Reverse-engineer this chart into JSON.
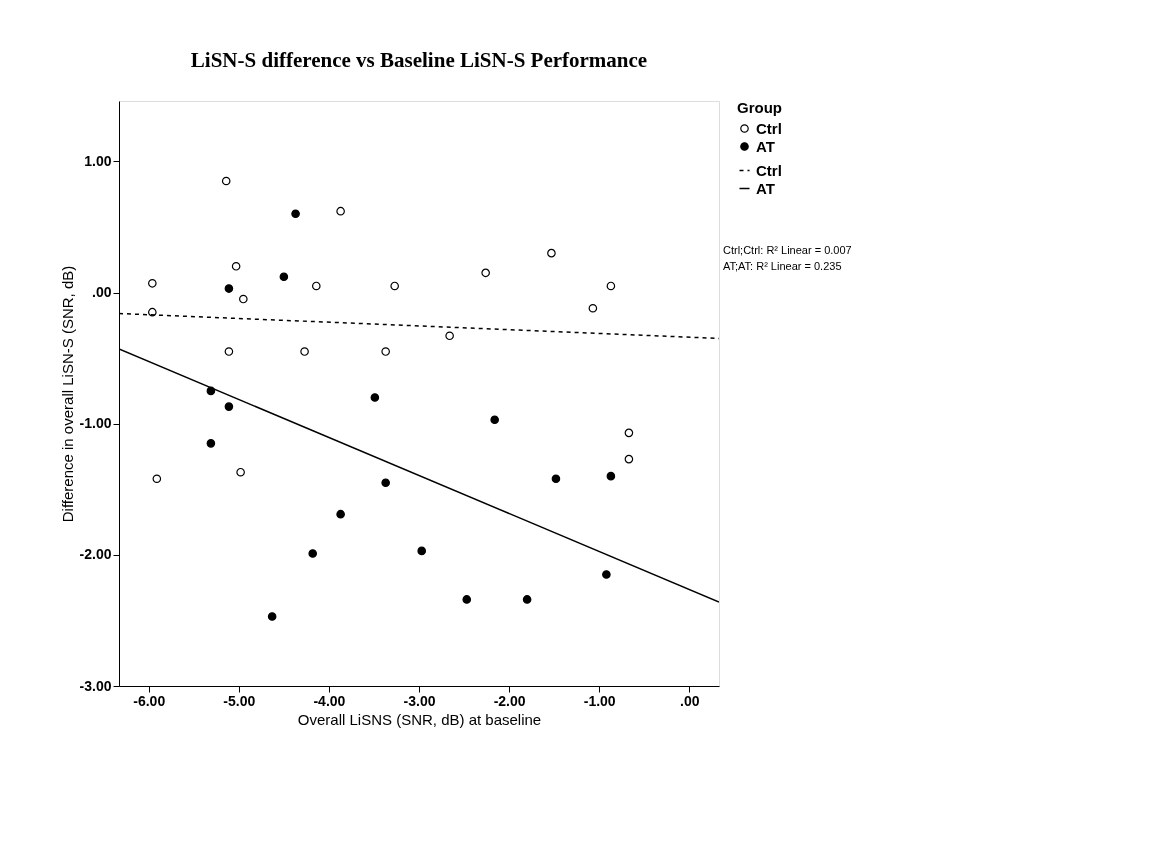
{
  "chart_data": {
    "type": "scatter",
    "title": "LiSN-S difference vs Baseline LiSN-S Performance",
    "xlabel": "Overall LiSNS (SNR, dB) at baseline",
    "ylabel": "Difference in overall LiSN-S (SNR, dB)",
    "legend_title": "Group",
    "xlim": [
      -6.33,
      0.33
    ],
    "ylim": [
      -3.0,
      1.46
    ],
    "xticks": [
      {
        "value": -6,
        "label": "-6.00"
      },
      {
        "value": -5,
        "label": "-5.00"
      },
      {
        "value": -4,
        "label": "-4.00"
      },
      {
        "value": -3,
        "label": "-3.00"
      },
      {
        "value": -2,
        "label": "-2.00"
      },
      {
        "value": -1,
        "label": "-1.00"
      },
      {
        "value": 0,
        "label": ".00"
      }
    ],
    "yticks": [
      {
        "value": -3,
        "label": "-3.00"
      },
      {
        "value": -2,
        "label": "-2.00"
      },
      {
        "value": -1,
        "label": "-1.00"
      },
      {
        "value": 0,
        "label": ".00"
      },
      {
        "value": 1,
        "label": "1.00"
      }
    ],
    "grid": false,
    "legend": "right",
    "series": [
      {
        "name": "Ctrl",
        "color": "#ffffff",
        "x": [
          -5.14,
          -3.87,
          -5.03,
          -5.96,
          -4.14,
          -3.27,
          -4.95,
          -5.96,
          -5.11,
          -4.27,
          -3.37,
          -5.91,
          -4.98,
          -2.26,
          -1.53,
          -0.87,
          -1.07,
          -2.66,
          -0.67,
          -0.67
        ],
        "values": [
          0.85,
          0.62,
          0.2,
          0.07,
          0.05,
          0.05,
          -0.05,
          -0.15,
          -0.45,
          -0.45,
          -0.45,
          -1.42,
          -1.37,
          0.15,
          0.3,
          0.05,
          -0.12,
          -0.33,
          -1.07,
          -1.27
        ]
      },
      {
        "name": "AT",
        "color": "#000000",
        "x": [
          -4.37,
          -4.5,
          -5.11,
          -5.31,
          -5.11,
          -3.49,
          -5.31,
          -3.37,
          -2.16,
          -1.48,
          -0.87,
          -3.87,
          -4.18,
          -2.97,
          -4.63,
          -2.47,
          -1.8,
          -0.92
        ],
        "values": [
          0.6,
          0.12,
          0.03,
          -0.75,
          -0.87,
          -0.8,
          -1.15,
          -1.45,
          -0.97,
          -1.42,
          -1.4,
          -1.69,
          -1.99,
          -1.97,
          -2.47,
          -2.34,
          -2.34,
          -2.15
        ]
      },
      {
        "name": "Ctrl",
        "type": "line",
        "line_style": "dashed",
        "color": "#000000",
        "x": [
          -6.33,
          0.33
        ],
        "values": [
          -0.16,
          -0.35
        ]
      },
      {
        "name": "AT",
        "type": "line",
        "line_style": "solid",
        "color": "#000000",
        "x": [
          -6.33,
          0.33
        ],
        "values": [
          -0.43,
          -2.36
        ]
      }
    ],
    "annotations": [
      "Ctrl;Ctrl: R² Linear = 0.007",
      "AT;AT: R² Linear = 0.235"
    ]
  }
}
